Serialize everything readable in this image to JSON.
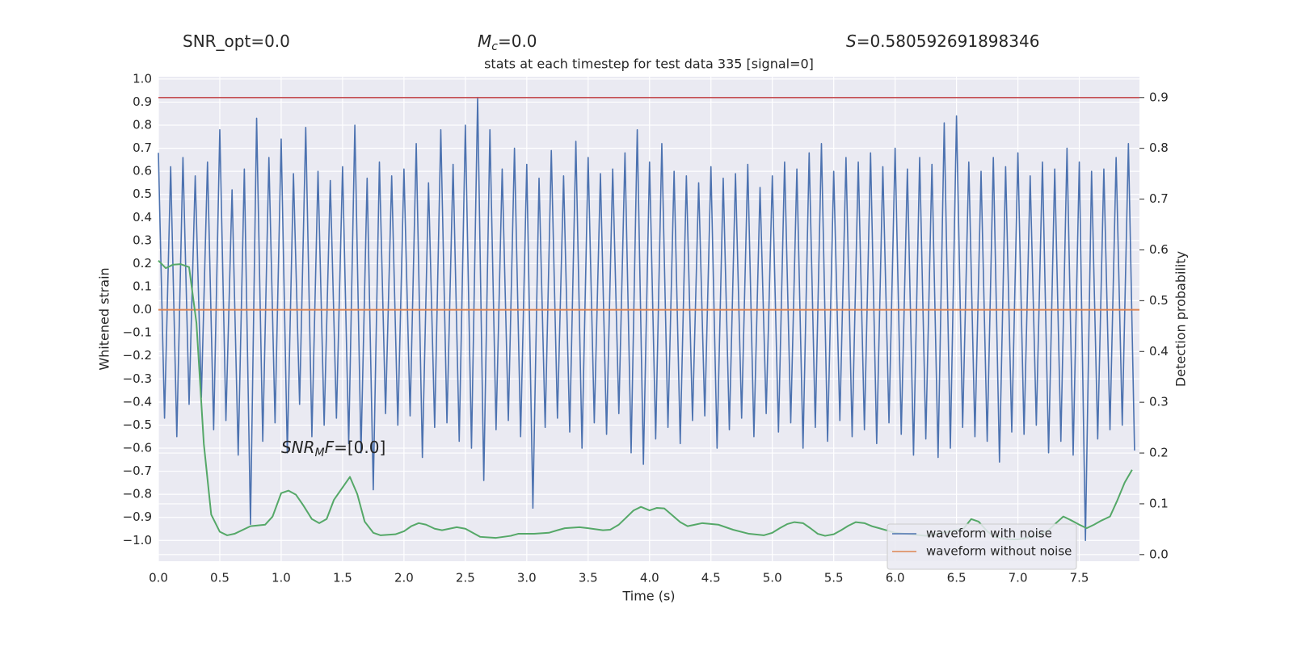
{
  "chart_data": {
    "type": "line",
    "stats": [
      [
        {
          "t": "SNR_opt=0.0"
        }
      ],
      [
        {
          "t": "M",
          "i": true
        },
        {
          "t": "c",
          "sub": true,
          "i": true
        },
        {
          "t": "=0.0"
        }
      ],
      [
        {
          "t": "S",
          "i": true
        },
        {
          "t": "=0.580592691898346"
        }
      ]
    ],
    "title": "stats at each timestep for test data 335 [signal=0]",
    "xlabel": "Time (s)",
    "ylabel": "Whitened strain",
    "y2label": "Detection probability",
    "annotation": {
      "parts": [
        {
          "t": "SNR",
          "i": true
        },
        {
          "t": "M",
          "sub": true,
          "i": true
        },
        {
          "t": "F",
          "i": true
        },
        {
          "t": "=[0.0]"
        }
      ],
      "x": 1.0,
      "y": -0.6
    },
    "xlim": [
      0,
      7.99
    ],
    "ylim": [
      -1.09,
      1.01
    ],
    "y2lim": [
      -0.013,
      0.941
    ],
    "xticks": [
      {
        "value": 0,
        "label": "0.0"
      },
      {
        "value": 0.5,
        "label": "0.5"
      },
      {
        "value": 1,
        "label": "1.0"
      },
      {
        "value": 1.5,
        "label": "1.5"
      },
      {
        "value": 2,
        "label": "2.0"
      },
      {
        "value": 2.5,
        "label": "2.5"
      },
      {
        "value": 3,
        "label": "3.0"
      },
      {
        "value": 3.5,
        "label": "3.5"
      },
      {
        "value": 4,
        "label": "4.0"
      },
      {
        "value": 4.5,
        "label": "4.5"
      },
      {
        "value": 5,
        "label": "5.0"
      },
      {
        "value": 5.5,
        "label": "5.5"
      },
      {
        "value": 6,
        "label": "6.0"
      },
      {
        "value": 6.5,
        "label": "6.5"
      },
      {
        "value": 7,
        "label": "7.0"
      },
      {
        "value": 7.5,
        "label": "7.5"
      }
    ],
    "yticks": [
      {
        "value": -1,
        "label": "−1.0"
      },
      {
        "value": -0.9,
        "label": "−0.9"
      },
      {
        "value": -0.8,
        "label": "−0.8"
      },
      {
        "value": -0.7,
        "label": "−0.7"
      },
      {
        "value": -0.6,
        "label": "−0.6"
      },
      {
        "value": -0.5,
        "label": "−0.5"
      },
      {
        "value": -0.4,
        "label": "−0.4"
      },
      {
        "value": -0.3,
        "label": "−0.3"
      },
      {
        "value": -0.2,
        "label": "−0.2"
      },
      {
        "value": -0.1,
        "label": "−0.1"
      },
      {
        "value": 0,
        "label": "0.0"
      },
      {
        "value": 0.1,
        "label": "0.1"
      },
      {
        "value": 0.2,
        "label": "0.2"
      },
      {
        "value": 0.3,
        "label": "0.3"
      },
      {
        "value": 0.4,
        "label": "0.4"
      },
      {
        "value": 0.5,
        "label": "0.5"
      },
      {
        "value": 0.6,
        "label": "0.6"
      },
      {
        "value": 0.7,
        "label": "0.7"
      },
      {
        "value": 0.8,
        "label": "0.8"
      },
      {
        "value": 0.9,
        "label": "0.9"
      },
      {
        "value": 1,
        "label": "1.0"
      }
    ],
    "y2ticks": [
      {
        "value": 0,
        "label": "0.0"
      },
      {
        "value": 0.1,
        "label": "0.1"
      },
      {
        "value": 0.2,
        "label": "0.2"
      },
      {
        "value": 0.3,
        "label": "0.3"
      },
      {
        "value": 0.4,
        "label": "0.4"
      },
      {
        "value": 0.5,
        "label": "0.5"
      },
      {
        "value": 0.6,
        "label": "0.6"
      },
      {
        "value": 0.7,
        "label": "0.7"
      },
      {
        "value": 0.8,
        "label": "0.8"
      },
      {
        "value": 0.9,
        "label": "0.9"
      }
    ],
    "grid": true,
    "legend": "lower right",
    "hlines": [
      {
        "value": 0.9,
        "axis": "y2",
        "color": "#c44e52"
      }
    ],
    "series": [
      {
        "name": "waveform with noise",
        "color": "#4c72b0",
        "x": [
          0,
          0.05,
          0.1,
          0.15,
          0.2,
          0.25,
          0.3,
          0.35,
          0.4,
          0.45,
          0.5,
          0.55,
          0.6,
          0.65,
          0.7,
          0.75,
          0.8,
          0.85,
          0.9,
          0.95,
          1,
          1.05,
          1.1,
          1.15,
          1.2,
          1.25,
          1.3,
          1.35,
          1.4,
          1.45,
          1.5,
          1.55,
          1.6,
          1.65,
          1.7,
          1.75,
          1.8,
          1.85,
          1.9,
          1.95,
          2,
          2.05,
          2.1,
          2.15,
          2.2,
          2.25,
          2.3,
          2.35,
          2.4,
          2.45,
          2.5,
          2.55,
          2.6,
          2.65,
          2.7,
          2.75,
          2.8,
          2.85,
          2.9,
          2.95,
          3,
          3.05,
          3.1,
          3.15,
          3.2,
          3.25,
          3.3,
          3.35,
          3.4,
          3.45,
          3.5,
          3.55,
          3.6,
          3.65,
          3.7,
          3.75,
          3.8,
          3.85,
          3.9,
          3.95,
          4,
          4.05,
          4.1,
          4.15,
          4.2,
          4.25,
          4.3,
          4.35,
          4.4,
          4.45,
          4.5,
          4.55,
          4.6,
          4.65,
          4.7,
          4.75,
          4.8,
          4.85,
          4.9,
          4.95,
          5,
          5.05,
          5.1,
          5.15,
          5.2,
          5.25,
          5.3,
          5.35,
          5.4,
          5.45,
          5.5,
          5.55,
          5.6,
          5.65,
          5.7,
          5.75,
          5.8,
          5.85,
          5.9,
          5.95,
          6,
          6.05,
          6.1,
          6.15,
          6.2,
          6.25,
          6.3,
          6.35,
          6.4,
          6.45,
          6.5,
          6.55,
          6.6,
          6.65,
          6.7,
          6.75,
          6.8,
          6.85,
          6.9,
          6.95,
          7,
          7.05,
          7.1,
          7.15,
          7.2,
          7.25,
          7.3,
          7.35,
          7.4,
          7.45,
          7.5,
          7.55,
          7.6,
          7.65,
          7.7,
          7.75,
          7.8,
          7.85,
          7.9,
          7.95
        ],
        "values": [
          0.68,
          -0.47,
          0.62,
          -0.55,
          0.66,
          -0.41,
          0.58,
          -0.38,
          0.64,
          -0.52,
          0.78,
          -0.48,
          0.52,
          -0.63,
          0.61,
          -0.93,
          0.83,
          -0.57,
          0.66,
          -0.49,
          0.74,
          -0.62,
          0.59,
          -0.41,
          0.79,
          -0.55,
          0.6,
          -0.5,
          0.56,
          -0.47,
          0.62,
          -0.58,
          0.8,
          -0.62,
          0.57,
          -0.78,
          0.64,
          -0.45,
          0.58,
          -0.5,
          0.61,
          -0.46,
          0.72,
          -0.64,
          0.55,
          -0.51,
          0.78,
          -0.49,
          0.63,
          -0.57,
          0.8,
          -0.6,
          0.92,
          -0.74,
          0.78,
          -0.52,
          0.61,
          -0.48,
          0.7,
          -0.55,
          0.63,
          -0.86,
          0.57,
          -0.51,
          0.69,
          -0.47,
          0.58,
          -0.53,
          0.73,
          -0.6,
          0.66,
          -0.49,
          0.59,
          -0.54,
          0.61,
          -0.45,
          0.68,
          -0.62,
          0.78,
          -0.67,
          0.64,
          -0.56,
          0.72,
          -0.51,
          0.6,
          -0.58,
          0.58,
          -0.48,
          0.55,
          -0.46,
          0.62,
          -0.6,
          0.57,
          -0.52,
          0.59,
          -0.47,
          0.63,
          -0.55,
          0.53,
          -0.45,
          0.58,
          -0.53,
          0.64,
          -0.49,
          0.61,
          -0.6,
          0.68,
          -0.51,
          0.72,
          -0.57,
          0.6,
          -0.48,
          0.66,
          -0.55,
          0.64,
          -0.52,
          0.68,
          -0.58,
          0.62,
          -0.49,
          0.7,
          -0.54,
          0.61,
          -0.63,
          0.66,
          -0.56,
          0.63,
          -0.64,
          0.81,
          -0.6,
          0.84,
          -0.51,
          0.64,
          -0.55,
          0.6,
          -0.57,
          0.66,
          -0.66,
          0.62,
          -0.53,
          0.68,
          -0.54,
          0.58,
          -0.5,
          0.64,
          -0.62,
          0.61,
          -0.57,
          0.7,
          -0.63,
          0.64,
          -1.0,
          0.6,
          -0.56,
          0.61,
          -0.52,
          0.66,
          -0.5,
          0.72,
          -0.61
        ]
      },
      {
        "name": "waveform without noise",
        "color": "#dd8452",
        "x": [
          0,
          7.99
        ],
        "values": [
          0,
          0
        ]
      },
      {
        "color": "#55a868",
        "axis": "y2",
        "x": [
          0,
          0.06,
          0.12,
          0.18,
          0.25,
          0.31,
          0.37,
          0.43,
          0.5,
          0.56,
          0.62,
          0.75,
          0.87,
          0.93,
          1.0,
          1.06,
          1.12,
          1.18,
          1.25,
          1.31,
          1.37,
          1.43,
          1.56,
          1.62,
          1.68,
          1.75,
          1.81,
          1.93,
          2.0,
          2.06,
          2.12,
          2.18,
          2.25,
          2.31,
          2.43,
          2.5,
          2.56,
          2.62,
          2.75,
          2.87,
          2.93,
          3.06,
          3.18,
          3.25,
          3.31,
          3.43,
          3.5,
          3.62,
          3.68,
          3.75,
          3.81,
          3.87,
          3.93,
          4.0,
          4.06,
          4.12,
          4.25,
          4.31,
          4.37,
          4.43,
          4.56,
          4.68,
          4.81,
          4.93,
          5.0,
          5.06,
          5.12,
          5.18,
          5.25,
          5.31,
          5.37,
          5.43,
          5.5,
          5.56,
          5.62,
          5.68,
          5.75,
          5.81,
          5.87,
          6.0,
          6.12,
          6.25,
          6.5,
          6.56,
          6.62,
          6.68,
          6.75,
          6.81,
          6.87,
          6.93,
          7.0,
          7.12,
          7.25,
          7.31,
          7.37,
          7.43,
          7.5,
          7.56,
          7.62,
          7.68,
          7.75,
          7.81,
          7.87,
          7.93
        ],
        "values": [
          0.579,
          0.564,
          0.571,
          0.572,
          0.566,
          0.456,
          0.218,
          0.079,
          0.045,
          0.038,
          0.041,
          0.056,
          0.059,
          0.075,
          0.121,
          0.126,
          0.118,
          0.097,
          0.07,
          0.062,
          0.07,
          0.108,
          0.153,
          0.119,
          0.065,
          0.043,
          0.038,
          0.04,
          0.046,
          0.056,
          0.062,
          0.059,
          0.051,
          0.048,
          0.054,
          0.051,
          0.043,
          0.035,
          0.033,
          0.037,
          0.041,
          0.041,
          0.043,
          0.048,
          0.052,
          0.054,
          0.052,
          0.048,
          0.049,
          0.059,
          0.073,
          0.087,
          0.094,
          0.087,
          0.092,
          0.091,
          0.064,
          0.056,
          0.059,
          0.062,
          0.059,
          0.049,
          0.041,
          0.038,
          0.043,
          0.052,
          0.06,
          0.064,
          0.062,
          0.052,
          0.041,
          0.037,
          0.04,
          0.048,
          0.057,
          0.064,
          0.062,
          0.056,
          0.052,
          0.043,
          0.04,
          0.037,
          0.048,
          0.052,
          0.07,
          0.065,
          0.046,
          0.035,
          0.032,
          0.03,
          0.03,
          0.035,
          0.048,
          0.062,
          0.075,
          0.068,
          0.059,
          0.052,
          0.059,
          0.067,
          0.075,
          0.107,
          0.142,
          0.167
        ]
      }
    ]
  }
}
